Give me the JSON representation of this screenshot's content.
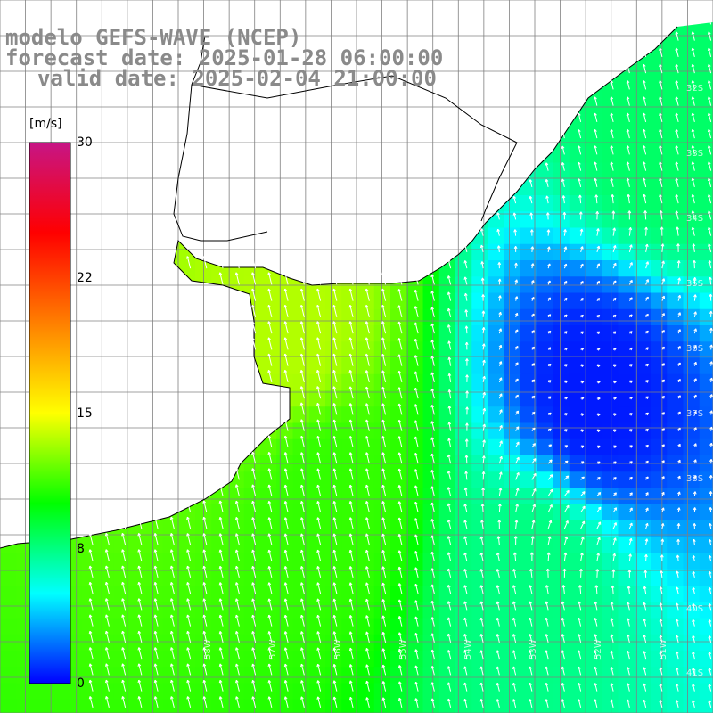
{
  "title": {
    "line1": "modelo GEFS-WAVE (NCEP)",
    "line2": "forecast date: 2025-01-28 06:00:00",
    "line3": "valid date: 2025-02-04 21:00:00"
  },
  "colorbar": {
    "unit": "[m/s]",
    "ticks": [
      "30",
      "22",
      "15",
      "8",
      "0"
    ],
    "tick_values": [
      30,
      22,
      15,
      8,
      0
    ],
    "min": 0,
    "max": 30,
    "colors": [
      "#0000ff",
      "#00ffff",
      "#00ff00",
      "#ffff00",
      "#ff7f00",
      "#ff0000",
      "#c71585"
    ]
  },
  "map": {
    "lon_range": [
      -65,
      -51
    ],
    "lat_range": [
      -41,
      -31
    ],
    "lat_labels": [
      "32S",
      "33S",
      "34S",
      "35S",
      "36S",
      "37S",
      "38S",
      "40S",
      "41S"
    ],
    "lon_labels": [
      "58W",
      "57W",
      "56W",
      "55W",
      "54W",
      "53W",
      "52W",
      "51W"
    ],
    "wind_field": {
      "description_units": "m/s",
      "centers": [
        {
          "lon": -53.3,
          "lat": -36.6,
          "speed": 0.5
        },
        {
          "lon": -59.3,
          "lat": -35.6,
          "speed": 13.5
        },
        {
          "lon": -58.5,
          "lat": -37.9,
          "speed": 11.0
        },
        {
          "lon": -54.5,
          "lat": -39.0,
          "speed": 7.5
        },
        {
          "lon": -52.0,
          "lat": -33.0,
          "speed": 8.0
        }
      ]
    },
    "land_color": "#ffffff",
    "coast_color": "#000000",
    "grid_color": "#808080",
    "arrow_color": "#ffffff"
  }
}
